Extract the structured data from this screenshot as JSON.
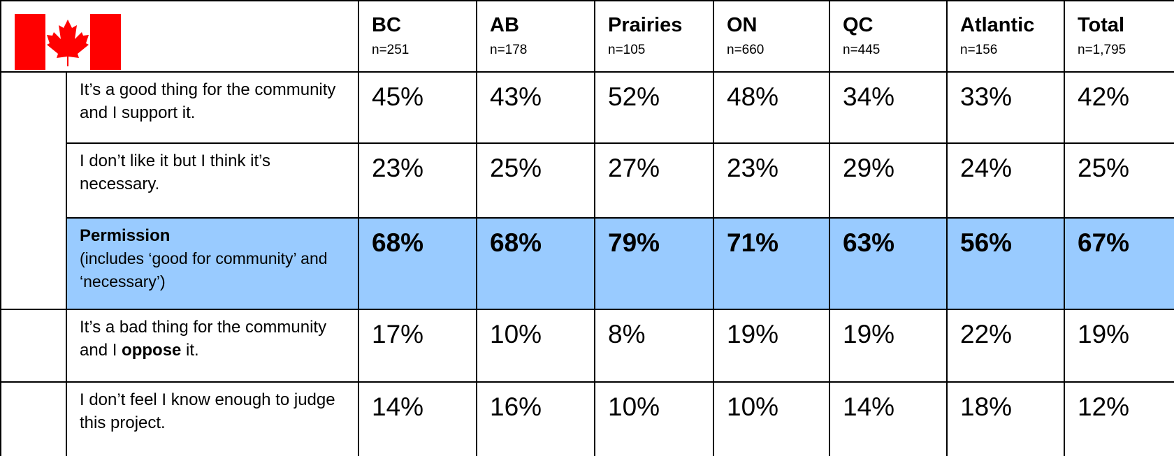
{
  "header": {
    "columns": [
      {
        "name": "BC",
        "n": "n=251"
      },
      {
        "name": "AB",
        "n": "n=178"
      },
      {
        "name": "Prairies",
        "n": "n=105"
      },
      {
        "name": "ON",
        "n": "n=660"
      },
      {
        "name": "QC",
        "n": "n=445"
      },
      {
        "name": "Atlantic",
        "n": "n=156"
      },
      {
        "name": "Total",
        "n": "n=1,795"
      }
    ]
  },
  "table": {
    "rows": [
      {
        "label": [
          "It’s a good thing for the community and I support it."
        ],
        "values": [
          "45%",
          "43%",
          "52%",
          "48%",
          "34%",
          "33%",
          "42%"
        ]
      },
      {
        "label": [
          "I don’t like it but I think it’s necessary."
        ],
        "values": [
          "23%",
          "25%",
          "27%",
          "23%",
          "29%",
          "24%",
          "25%"
        ]
      },
      {
        "label": [
          "Permission",
          "(includes ‘good for community’ and ‘necessary’)"
        ],
        "values": [
          "68%",
          "68%",
          "79%",
          "71%",
          "63%",
          "56%",
          "67%"
        ]
      },
      {
        "label": [
          "It’s a bad thing for the community and I ",
          "oppose",
          " it."
        ],
        "values": [
          "17%",
          "10%",
          "8%",
          "19%",
          "19%",
          "22%",
          "19%"
        ]
      },
      {
        "label": [
          "I don’t feel I know enough to judge this project."
        ],
        "values": [
          "14%",
          "16%",
          "10%",
          "10%",
          "14%",
          "18%",
          "12%"
        ]
      }
    ]
  }
}
